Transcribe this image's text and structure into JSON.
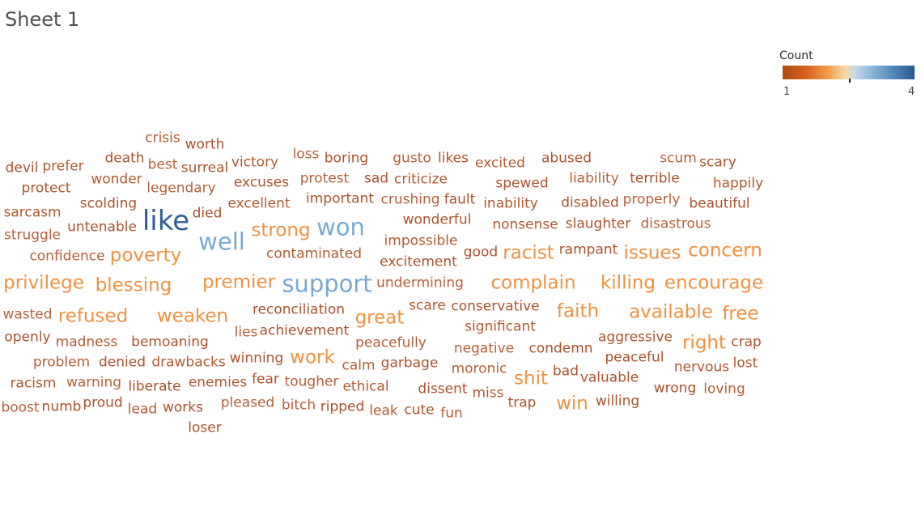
{
  "sheet": {
    "title": "Sheet 1"
  },
  "legend": {
    "title": "Count",
    "min_label": "1",
    "max_label": "4"
  },
  "chart_data": {
    "type": "wordcloud",
    "color_scale": {
      "measure": "Count",
      "min": 1,
      "max": 4,
      "palette": [
        "#b04a14",
        "#d9621f",
        "#f1a04c",
        "#8ab4d9",
        "#4f84b8",
        "#28568c"
      ]
    },
    "words": [
      {
        "text": "crisis",
        "count": 1
      },
      {
        "text": "worth",
        "count": 1
      },
      {
        "text": "loss",
        "count": 1
      },
      {
        "text": "devil",
        "count": 1
      },
      {
        "text": "prefer",
        "count": 1
      },
      {
        "text": "death",
        "count": 1
      },
      {
        "text": "best",
        "count": 1
      },
      {
        "text": "surreal",
        "count": 1
      },
      {
        "text": "victory",
        "count": 1
      },
      {
        "text": "boring",
        "count": 1
      },
      {
        "text": "gusto",
        "count": 1
      },
      {
        "text": "likes",
        "count": 1
      },
      {
        "text": "excited",
        "count": 1
      },
      {
        "text": "abused",
        "count": 1
      },
      {
        "text": "scum",
        "count": 1
      },
      {
        "text": "scary",
        "count": 1
      },
      {
        "text": "wonder",
        "count": 1
      },
      {
        "text": "excuses",
        "count": 1
      },
      {
        "text": "protest",
        "count": 1
      },
      {
        "text": "sad",
        "count": 1
      },
      {
        "text": "criticize",
        "count": 1
      },
      {
        "text": "spewed",
        "count": 1
      },
      {
        "text": "liability",
        "count": 1
      },
      {
        "text": "terrible",
        "count": 1
      },
      {
        "text": "happily",
        "count": 1
      },
      {
        "text": "protect",
        "count": 1
      },
      {
        "text": "legendary",
        "count": 1
      },
      {
        "text": "scolding",
        "count": 1
      },
      {
        "text": "excellent",
        "count": 1
      },
      {
        "text": "important",
        "count": 1
      },
      {
        "text": "crushing",
        "count": 1
      },
      {
        "text": "fault",
        "count": 1
      },
      {
        "text": "inability",
        "count": 1
      },
      {
        "text": "disabled",
        "count": 1
      },
      {
        "text": "properly",
        "count": 1
      },
      {
        "text": "beautiful",
        "count": 1
      },
      {
        "text": "sarcasm",
        "count": 1
      },
      {
        "text": "died",
        "count": 1
      },
      {
        "text": "like",
        "count": 4
      },
      {
        "text": "wonderful",
        "count": 1
      },
      {
        "text": "nonsense",
        "count": 1
      },
      {
        "text": "slaughter",
        "count": 1
      },
      {
        "text": "disastrous",
        "count": 1
      },
      {
        "text": "untenable",
        "count": 1
      },
      {
        "text": "strong",
        "count": 2
      },
      {
        "text": "won",
        "count": 3
      },
      {
        "text": "struggle",
        "count": 1
      },
      {
        "text": "well",
        "count": 3
      },
      {
        "text": "impossible",
        "count": 1
      },
      {
        "text": "rampant",
        "count": 1
      },
      {
        "text": "concern",
        "count": 2
      },
      {
        "text": "good",
        "count": 1
      },
      {
        "text": "racist",
        "count": 2
      },
      {
        "text": "issues",
        "count": 2
      },
      {
        "text": "confidence",
        "count": 1
      },
      {
        "text": "poverty",
        "count": 2
      },
      {
        "text": "contaminated",
        "count": 1
      },
      {
        "text": "excitement",
        "count": 1
      },
      {
        "text": "privilege",
        "count": 2
      },
      {
        "text": "premier",
        "count": 2
      },
      {
        "text": "support",
        "count": 3
      },
      {
        "text": "blessing",
        "count": 2
      },
      {
        "text": "undermining",
        "count": 1
      },
      {
        "text": "complain",
        "count": 2
      },
      {
        "text": "killing",
        "count": 2
      },
      {
        "text": "encourage",
        "count": 2
      },
      {
        "text": "wasted",
        "count": 1
      },
      {
        "text": "reconciliation",
        "count": 1
      },
      {
        "text": "scare",
        "count": 1
      },
      {
        "text": "conservative",
        "count": 1
      },
      {
        "text": "faith",
        "count": 2
      },
      {
        "text": "available",
        "count": 2
      },
      {
        "text": "free",
        "count": 2
      },
      {
        "text": "refused",
        "count": 2
      },
      {
        "text": "weaken",
        "count": 2
      },
      {
        "text": "great",
        "count": 2
      },
      {
        "text": "significant",
        "count": 1
      },
      {
        "text": "achievement",
        "count": 1
      },
      {
        "text": "lies",
        "count": 1
      },
      {
        "text": "openly",
        "count": 1
      },
      {
        "text": "madness",
        "count": 1
      },
      {
        "text": "bemoaning",
        "count": 1
      },
      {
        "text": "peacefully",
        "count": 1
      },
      {
        "text": "aggressive",
        "count": 1
      },
      {
        "text": "right",
        "count": 2
      },
      {
        "text": "crap",
        "count": 1
      },
      {
        "text": "negative",
        "count": 1
      },
      {
        "text": "condemn",
        "count": 1
      },
      {
        "text": "work",
        "count": 2
      },
      {
        "text": "peaceful",
        "count": 1
      },
      {
        "text": "problem",
        "count": 1
      },
      {
        "text": "denied",
        "count": 1
      },
      {
        "text": "drawbacks",
        "count": 1
      },
      {
        "text": "winning",
        "count": 1
      },
      {
        "text": "calm",
        "count": 1
      },
      {
        "text": "garbage",
        "count": 1
      },
      {
        "text": "lost",
        "count": 1
      },
      {
        "text": "nervous",
        "count": 1
      },
      {
        "text": "moronic",
        "count": 1
      },
      {
        "text": "bad",
        "count": 1
      },
      {
        "text": "shit",
        "count": 2
      },
      {
        "text": "racism",
        "count": 1
      },
      {
        "text": "warning",
        "count": 1
      },
      {
        "text": "liberate",
        "count": 1
      },
      {
        "text": "enemies",
        "count": 1
      },
      {
        "text": "fear",
        "count": 1
      },
      {
        "text": "tougher",
        "count": 1
      },
      {
        "text": "valuable",
        "count": 1
      },
      {
        "text": "ethical",
        "count": 1
      },
      {
        "text": "wrong",
        "count": 1
      },
      {
        "text": "loving",
        "count": 1
      },
      {
        "text": "dissent",
        "count": 1
      },
      {
        "text": "miss",
        "count": 1
      },
      {
        "text": "proud",
        "count": 1
      },
      {
        "text": "boost",
        "count": 1
      },
      {
        "text": "numb",
        "count": 1
      },
      {
        "text": "win",
        "count": 2
      },
      {
        "text": "willing",
        "count": 1
      },
      {
        "text": "pleased",
        "count": 1
      },
      {
        "text": "trap",
        "count": 1
      },
      {
        "text": "lead",
        "count": 1
      },
      {
        "text": "works",
        "count": 1
      },
      {
        "text": "bitch",
        "count": 1
      },
      {
        "text": "ripped",
        "count": 1
      },
      {
        "text": "leak",
        "count": 1
      },
      {
        "text": "cute",
        "count": 1
      },
      {
        "text": "fun",
        "count": 1
      },
      {
        "text": "loser",
        "count": 1
      }
    ]
  }
}
